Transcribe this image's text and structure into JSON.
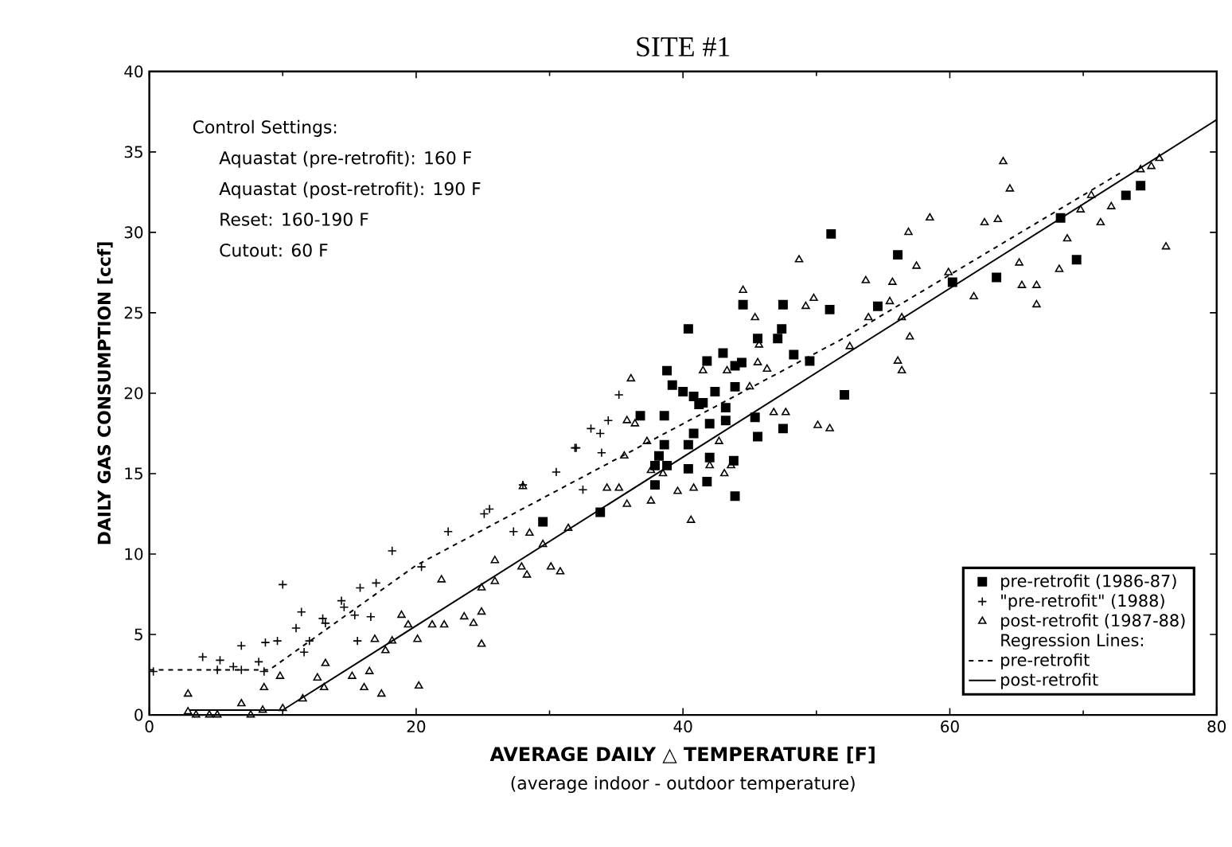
{
  "chart_data": {
    "type": "scatter",
    "title": "SITE #1",
    "xlabel": "AVERAGE DAILY △ TEMPERATURE [F]",
    "ylabel": "DAILY GAS CONSUMPTION [ccf]",
    "legend_title": "Regression Lines:",
    "annotations": [
      "Control Settings:",
      "Aquastat (pre-retrofit): 160 F",
      "Aquastat (post-retrofit): 190 F",
      "Reset: 160-190 F",
      "Cutout: 60 F",
      "(average indoor - outdoor temperature)"
    ],
    "xlim": [
      0,
      80
    ],
    "ylim": [
      0,
      40
    ],
    "xticks": [
      0,
      20,
      40,
      60,
      80
    ],
    "yticks": [
      0,
      5,
      10,
      15,
      20,
      25,
      30,
      35,
      40
    ],
    "grid": false,
    "legend": "bottom right",
    "series": [
      {
        "name": "pre-retrofit (1986-87)",
        "color": "#000000",
        "marker": "square",
        "x": [
          29.5,
          33.8,
          37.9,
          36.8,
          38.6,
          40.4,
          38.8,
          39.2,
          40.0,
          40.8,
          41.5,
          42.4,
          41.8,
          43.0,
          43.9,
          44.4,
          43.2,
          43.9,
          41.2,
          40.8,
          42.0,
          43.2,
          38.6,
          40.4,
          38.2,
          38.8,
          42.0,
          43.8,
          40.4,
          43.9,
          41.8,
          37.9,
          44.5,
          47.5,
          51.0,
          45.6,
          47.4,
          47.1,
          48.3,
          49.5,
          45.4,
          47.5,
          45.6,
          51.1,
          56.1,
          54.6,
          52.1,
          60.2,
          63.5,
          68.3,
          69.5,
          73.2,
          74.3
        ],
        "values": [
          12.0,
          12.6,
          14.3,
          18.6,
          18.6,
          24.0,
          21.4,
          20.5,
          20.1,
          19.8,
          19.4,
          20.1,
          22.0,
          22.5,
          21.7,
          21.9,
          19.1,
          20.4,
          19.3,
          17.5,
          18.1,
          18.3,
          16.8,
          16.8,
          16.1,
          15.5,
          16.0,
          15.8,
          15.3,
          13.6,
          14.5,
          15.5,
          25.5,
          25.5,
          25.2,
          23.4,
          24.0,
          23.4,
          22.4,
          22.0,
          18.5,
          17.8,
          17.3,
          29.9,
          28.6,
          25.4,
          19.9,
          26.9,
          27.2,
          30.9,
          28.3,
          32.3,
          32.9
        ]
      },
      {
        "name": "\"pre-retrofit\" (1988)",
        "color": "#000000",
        "marker": "cross",
        "x": [
          0.3,
          4.0,
          5.3,
          5.1,
          6.3,
          6.9,
          6.9,
          8.2,
          8.6,
          8.7,
          9.6,
          10.0,
          11.0,
          11.4,
          11.6,
          12.0,
          13.0,
          13.2,
          14.4,
          14.6,
          15.4,
          15.6,
          15.8,
          16.6,
          17.0,
          18.2,
          20.4,
          22.4,
          25.1,
          25.5,
          27.3,
          28.0,
          30.5,
          32.0,
          32.5,
          33.1,
          33.8,
          35.2,
          34.4,
          31.9,
          33.9
        ],
        "values": [
          2.7,
          3.6,
          3.4,
          2.8,
          3.0,
          2.8,
          4.3,
          3.3,
          2.7,
          4.5,
          4.6,
          8.1,
          5.4,
          6.4,
          3.9,
          4.6,
          6.0,
          5.7,
          7.1,
          6.7,
          6.2,
          4.6,
          7.9,
          6.1,
          8.2,
          10.2,
          9.2,
          11.4,
          12.5,
          12.8,
          11.4,
          14.3,
          15.1,
          16.6,
          14.0,
          17.8,
          17.5,
          19.9,
          18.3,
          16.6,
          16.3
        ]
      },
      {
        "name": "post-retrofit (1987-88)",
        "color": "#000000",
        "marker": "triangle",
        "x": [
          2.9,
          2.9,
          3.5,
          4.5,
          5.1,
          6.9,
          7.6,
          8.5,
          8.6,
          9.8,
          10.0,
          11.5,
          12.6,
          13.2,
          13.1,
          15.2,
          16.1,
          16.5,
          16.9,
          17.4,
          17.7,
          18.2,
          18.9,
          19.4,
          20.1,
          20.2,
          21.2,
          22.1,
          23.6,
          24.3,
          24.9,
          24.9,
          24.9,
          21.9,
          25.9,
          25.9,
          27.9,
          28.3,
          28.0,
          28.5,
          29.5,
          31.4,
          30.1,
          30.8,
          36.1,
          35.8,
          36.4,
          35.6,
          37.3,
          37.6,
          38.5,
          34.3,
          35.2,
          35.8,
          37.6,
          39.6,
          40.8,
          42.0,
          42.7,
          43.1,
          43.6,
          40.6,
          41.5,
          43.3,
          45.0,
          45.6,
          46.3,
          44.5,
          45.4,
          47.7,
          46.8,
          50.1,
          51.0,
          49.8,
          49.2,
          45.7,
          48.7,
          53.7,
          55.7,
          56.9,
          58.5,
          57.5,
          55.5,
          56.4,
          57.0,
          56.1,
          56.4,
          53.9,
          52.5,
          59.9,
          61.8,
          65.2,
          65.4,
          66.5,
          66.5,
          64.0,
          64.5,
          62.6,
          63.6,
          68.8,
          68.2,
          71.3,
          72.1,
          69.8,
          70.6,
          74.3,
          75.1,
          75.7,
          76.2
        ],
        "values": [
          1.3,
          0.2,
          0.0,
          0.0,
          0.0,
          0.7,
          0.0,
          0.3,
          1.7,
          2.4,
          0.4,
          1.0,
          2.3,
          3.2,
          1.7,
          2.4,
          1.7,
          2.7,
          4.7,
          1.3,
          4.0,
          4.6,
          6.2,
          5.6,
          4.7,
          1.8,
          5.6,
          5.6,
          6.1,
          5.7,
          4.4,
          6.4,
          7.9,
          8.4,
          9.6,
          8.3,
          9.2,
          8.7,
          14.2,
          11.3,
          10.6,
          11.6,
          9.2,
          8.9,
          20.9,
          18.3,
          18.1,
          16.1,
          17.0,
          15.2,
          15.0,
          14.1,
          14.1,
          13.1,
          13.3,
          13.9,
          14.1,
          15.5,
          17.0,
          15.0,
          15.5,
          12.1,
          21.4,
          21.4,
          20.4,
          21.9,
          21.5,
          26.4,
          24.7,
          18.8,
          18.8,
          18.0,
          17.8,
          25.9,
          25.4,
          23.0,
          28.3,
          27.0,
          26.9,
          30.0,
          30.9,
          27.9,
          25.7,
          24.7,
          23.5,
          22.0,
          21.4,
          24.7,
          22.9,
          27.5,
          26.0,
          28.1,
          26.7,
          26.7,
          25.5,
          34.4,
          32.7,
          30.6,
          30.8,
          29.6,
          27.7,
          30.6,
          31.6,
          31.4,
          32.3,
          33.9,
          34.1,
          34.6,
          29.1
        ]
      },
      {
        "name": "pre-retrofit",
        "type": "line",
        "color": "#000000",
        "marker": "none",
        "line_style": "dashed",
        "x": [
          0,
          9,
          20,
          40,
          52,
          73
        ],
        "values": [
          2.8,
          2.8,
          9.3,
          18.1,
          23.4,
          33.8
        ]
      },
      {
        "name": "post-retrofit",
        "type": "line",
        "color": "#000000",
        "marker": "none",
        "line_style": "solid",
        "x": [
          3,
          10,
          80
        ],
        "values": [
          0.3,
          0.3,
          37
        ]
      }
    ]
  }
}
